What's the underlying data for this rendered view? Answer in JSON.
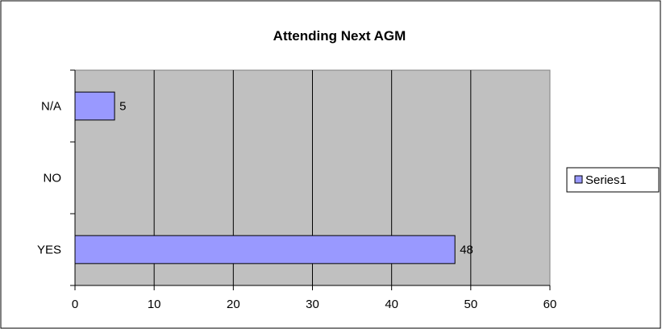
{
  "chart_data": {
    "type": "bar",
    "orientation": "horizontal",
    "title": "Attending Next AGM",
    "xlabel": "",
    "ylabel": "",
    "categories": [
      "YES",
      "NO",
      "N/A"
    ],
    "series": [
      {
        "name": "Series1",
        "values": [
          48,
          null,
          5
        ]
      }
    ],
    "xlim": [
      0,
      60
    ],
    "x_ticks": [
      "0",
      "10",
      "20",
      "30",
      "40",
      "50",
      "60"
    ],
    "data_labels": [
      "48",
      "",
      "5"
    ],
    "grid": "vertical",
    "legend": "right",
    "colors": {
      "plot_background": "#c0c0c0",
      "bar_fill": "#9999ff",
      "bar_stroke": "#000000",
      "gridline": "#000000"
    }
  }
}
